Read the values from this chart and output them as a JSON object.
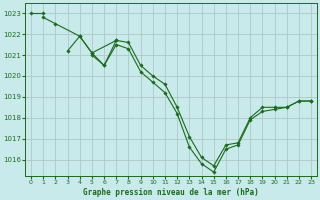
{
  "background_color": "#c8eaea",
  "grid_color": "#b0c8c8",
  "line_color": "#1a6b1a",
  "marker_color": "#1a6b1a",
  "title": "Graphe pression niveau de la mer (hPa)",
  "xlim": [
    -0.5,
    23.5
  ],
  "ylim": [
    1015.2,
    1023.5
  ],
  "yticks": [
    1016,
    1017,
    1018,
    1019,
    1020,
    1021,
    1022,
    1023
  ],
  "xticks": [
    0,
    1,
    2,
    3,
    4,
    5,
    6,
    7,
    8,
    9,
    10,
    11,
    12,
    13,
    14,
    15,
    16,
    17,
    18,
    19,
    20,
    21,
    22,
    23
  ],
  "series": [
    {
      "x": [
        0,
        1
      ],
      "y": [
        1023.0,
        1023.0
      ]
    },
    {
      "x": [
        1,
        2,
        4,
        5,
        7
      ],
      "y": [
        1022.8,
        1022.5,
        1021.9,
        1021.1,
        1021.7
      ]
    },
    {
      "x": [
        3,
        4,
        5,
        6,
        7,
        8,
        9,
        10,
        11,
        12,
        13,
        14,
        15,
        16,
        17,
        18,
        19,
        20,
        21,
        22,
        23
      ],
      "y": [
        1021.2,
        1021.9,
        1021.1,
        1020.5,
        1021.7,
        1021.6,
        1020.5,
        1020.0,
        1019.6,
        1018.5,
        1017.1,
        1016.1,
        1015.7,
        1016.7,
        1016.8,
        1018.0,
        1018.5,
        1018.5,
        1018.5,
        1018.8,
        1018.8
      ]
    },
    {
      "x": [
        5,
        6,
        7,
        8,
        9,
        10,
        11,
        12,
        13,
        14,
        15,
        16,
        17,
        18,
        19,
        20,
        21,
        22,
        23
      ],
      "y": [
        1021.0,
        1020.5,
        1021.5,
        1021.3,
        1020.2,
        1019.7,
        1019.2,
        1018.2,
        1016.6,
        1015.8,
        1015.4,
        1016.5,
        1016.7,
        1017.9,
        1018.3,
        1018.4,
        1018.5,
        1018.8,
        1018.8
      ]
    }
  ]
}
